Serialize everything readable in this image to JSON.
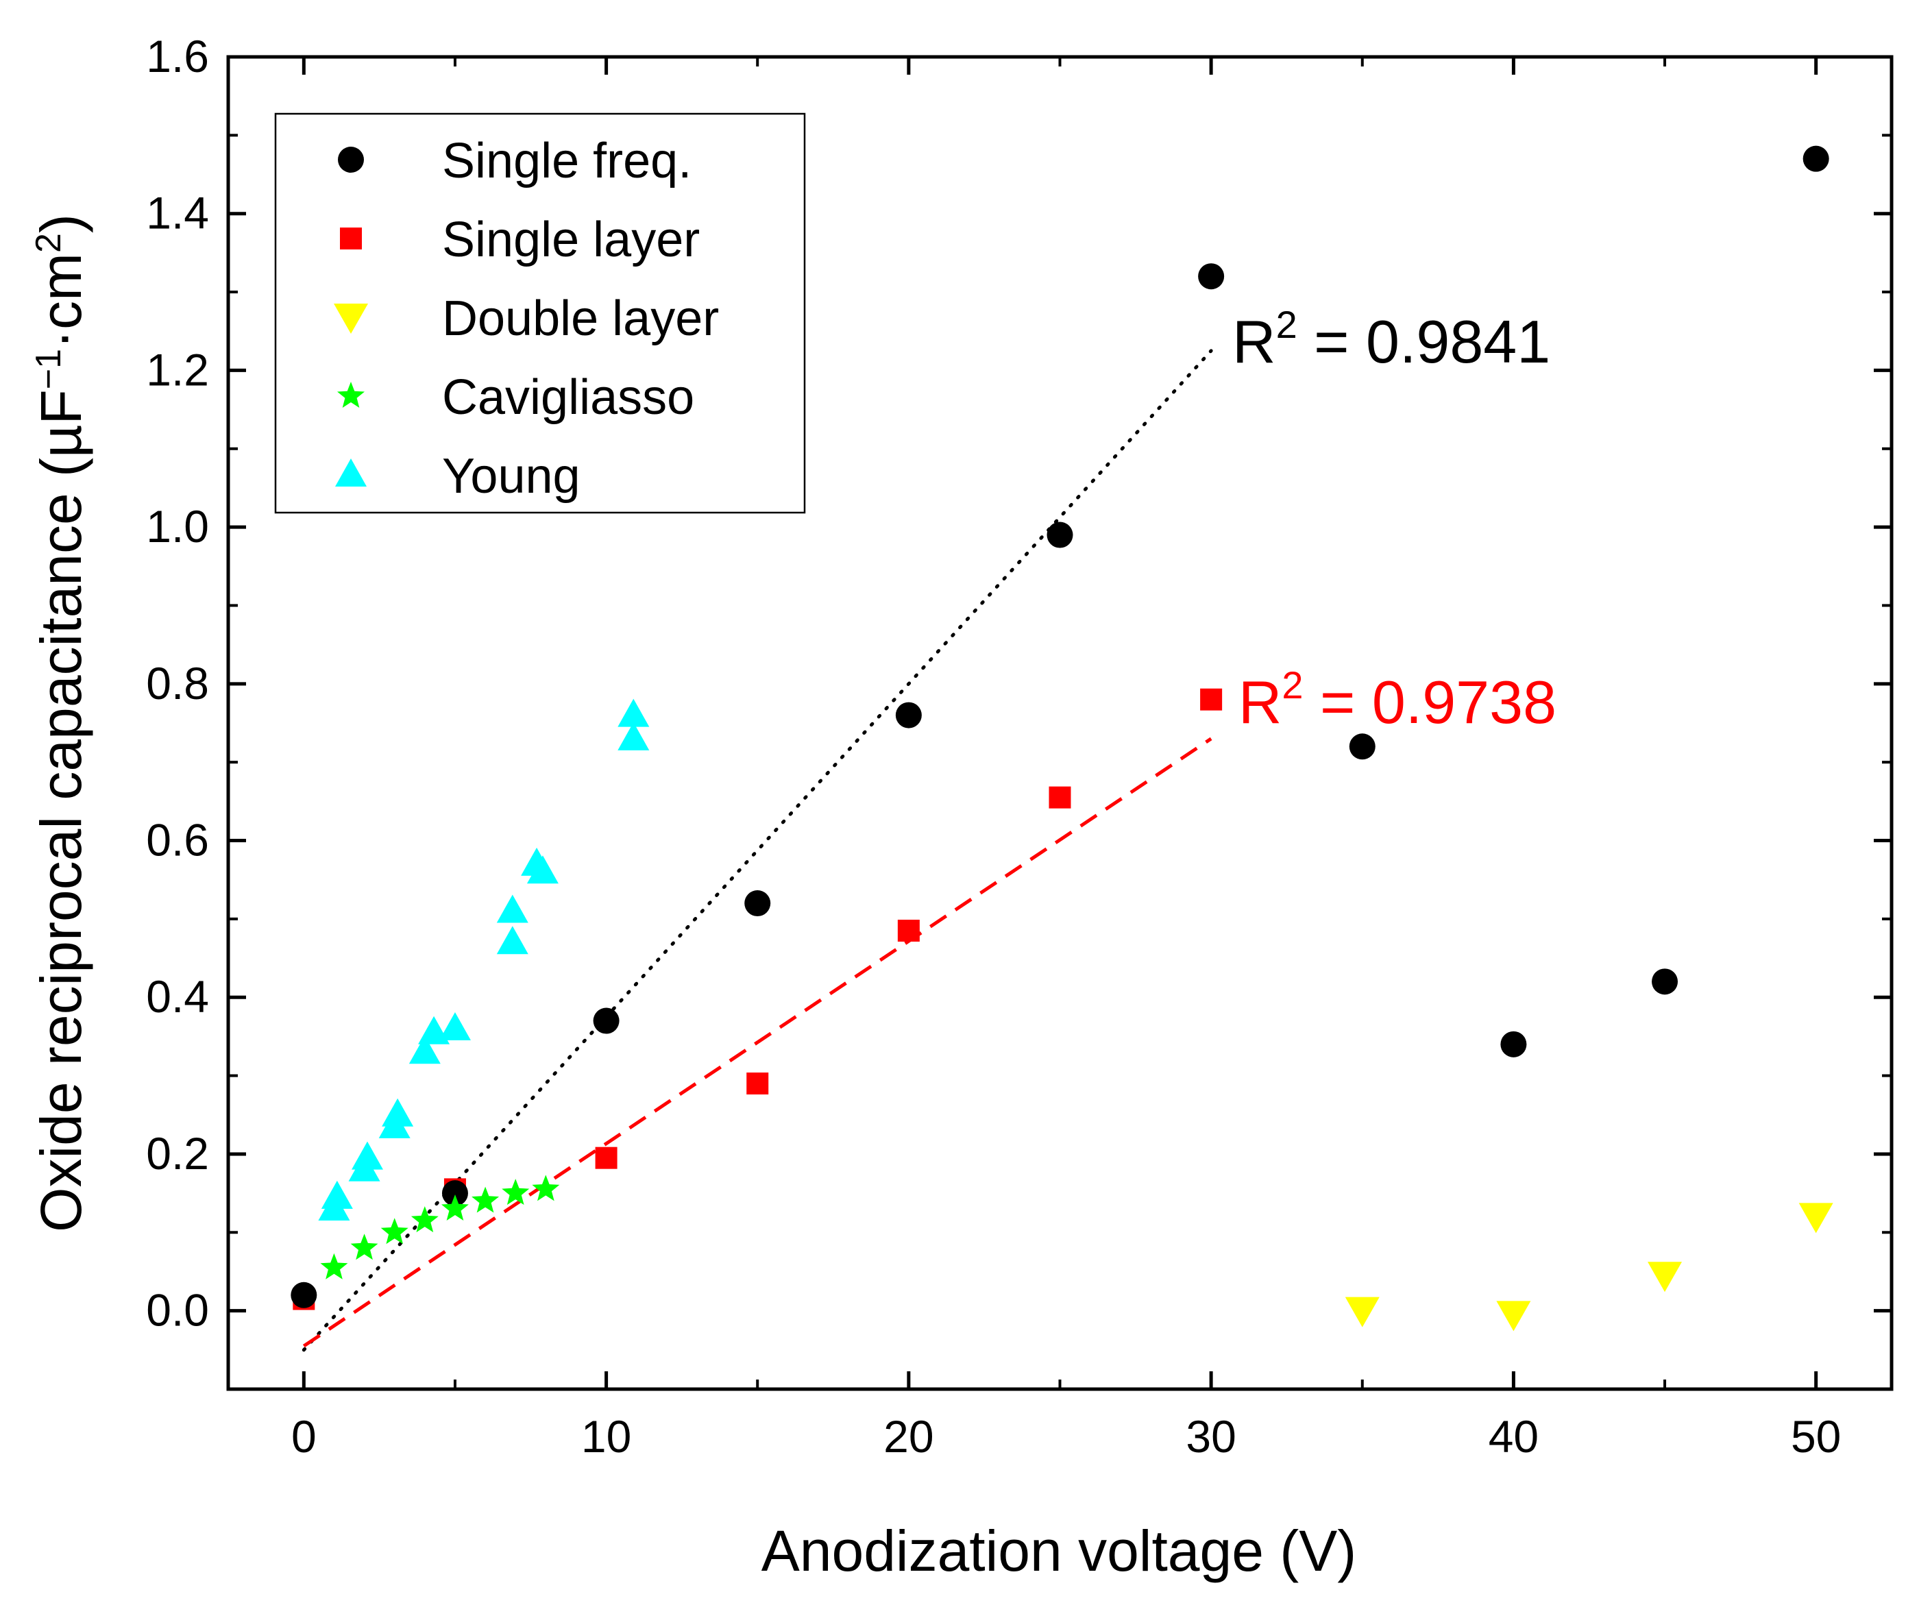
{
  "chart_data": {
    "type": "scatter",
    "xlabel": "Anodization voltage (V)",
    "ylabel": {
      "prefix": "Oxide reciprocal capacitance (µF",
      "exp1": "−1",
      "mid": "·cm",
      "exp2": "2",
      "suffix": ")"
    },
    "xlim": [
      -2.5,
      52.5
    ],
    "ylim": [
      -0.1,
      1.6
    ],
    "x_ticks": [
      0,
      10,
      20,
      30,
      40,
      50
    ],
    "y_ticks": [
      0.0,
      0.2,
      0.4,
      0.6,
      0.8,
      1.0,
      1.2,
      1.4,
      1.6
    ],
    "x_tick_labels": [
      "0",
      "10",
      "20",
      "30",
      "40",
      "50"
    ],
    "y_tick_labels": [
      "0.0",
      "0.2",
      "0.4",
      "0.6",
      "0.8",
      "1.0",
      "1.2",
      "1.4",
      "1.6"
    ],
    "grid": false,
    "legend_position": "top-left",
    "series": [
      {
        "name": "Single freq.",
        "marker": "circle",
        "color": "#000000",
        "points": [
          [
            0,
            0.02
          ],
          [
            5,
            0.15
          ],
          [
            10,
            0.37
          ],
          [
            15,
            0.52
          ],
          [
            20,
            0.76
          ],
          [
            25,
            0.99
          ],
          [
            30,
            1.32
          ],
          [
            35,
            0.72
          ],
          [
            40,
            0.34
          ],
          [
            45,
            0.42
          ],
          [
            50,
            1.47
          ]
        ]
      },
      {
        "name": "Single layer",
        "marker": "square",
        "color": "#ff0000",
        "points": [
          [
            0,
            0.015
          ],
          [
            5,
            0.155
          ],
          [
            10,
            0.195
          ],
          [
            15,
            0.29
          ],
          [
            20,
            0.485
          ],
          [
            25,
            0.655
          ],
          [
            30,
            0.78
          ]
        ]
      },
      {
        "name": "Double layer",
        "marker": "triangle-down",
        "color": "#ffff00",
        "points": [
          [
            35,
            0.0
          ],
          [
            40,
            -0.005
          ],
          [
            45,
            0.045
          ],
          [
            50,
            0.12
          ]
        ]
      },
      {
        "name": "Cavigliasso",
        "marker": "star",
        "color": "#00ff00",
        "points": [
          [
            1,
            0.055
          ],
          [
            2,
            0.08
          ],
          [
            3,
            0.1
          ],
          [
            4,
            0.115
          ],
          [
            5,
            0.13
          ],
          [
            6,
            0.14
          ],
          [
            7,
            0.15
          ],
          [
            8,
            0.155
          ]
        ]
      },
      {
        "name": "Young",
        "marker": "triangle-up",
        "color": "#00ffff",
        "points": [
          [
            1,
            0.13
          ],
          [
            1.1,
            0.145
          ],
          [
            2,
            0.18
          ],
          [
            2.1,
            0.195
          ],
          [
            3,
            0.235
          ],
          [
            3.1,
            0.25
          ],
          [
            4,
            0.33
          ],
          [
            4.3,
            0.355
          ],
          [
            5,
            0.36
          ],
          [
            6.9,
            0.47
          ],
          [
            6.9,
            0.51
          ],
          [
            7.7,
            0.57
          ],
          [
            7.9,
            0.56
          ],
          [
            10.9,
            0.73
          ],
          [
            10.9,
            0.76
          ]
        ]
      }
    ],
    "fits": [
      {
        "color": "#000000",
        "dash": "dotted",
        "x": [
          0,
          30
        ],
        "y": [
          -0.05,
          1.225
        ]
      },
      {
        "color": "#ff0000",
        "dash": "dashed",
        "x": [
          0,
          30
        ],
        "y": [
          -0.045,
          0.73
        ]
      }
    ],
    "annotations": [
      {
        "base": "R",
        "sup": "2",
        "text": " = 0.9841",
        "color": "#000000",
        "x": 30.7,
        "y": 1.21
      },
      {
        "base": "R",
        "sup": "2",
        "text": " = 0.9738",
        "color": "#ff0000",
        "x": 30.9,
        "y": 0.75
      }
    ]
  }
}
